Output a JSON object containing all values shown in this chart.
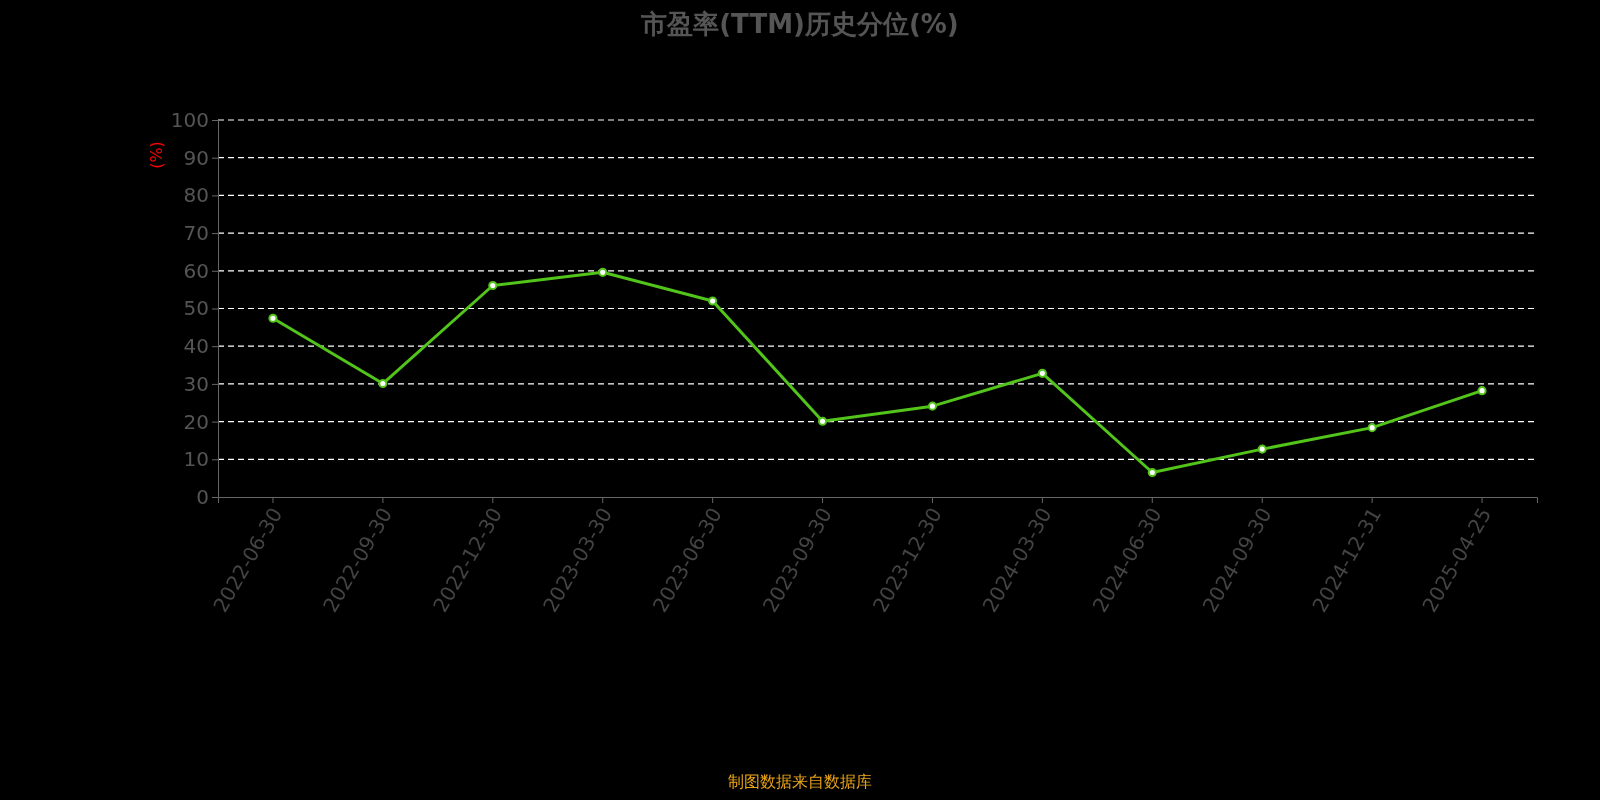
{
  "chart_data": {
    "type": "line",
    "title": "市盈率(TTM)历史分位(%)",
    "ylabel": "(%)",
    "categories": [
      "2022-06-30",
      "2022-09-30",
      "2022-12-30",
      "2023-03-30",
      "2023-06-30",
      "2023-09-30",
      "2023-12-30",
      "2024-03-30",
      "2024-06-30",
      "2024-09-30",
      "2024-12-31",
      "2025-04-25"
    ],
    "series": [
      {
        "color": "#52c41a",
        "values": [
          47.4,
          30.1,
          56.1,
          59.6,
          52.0,
          20.1,
          24.1,
          32.8,
          6.5,
          12.7,
          18.4,
          28.2
        ]
      }
    ],
    "ylim": [
      0,
      100
    ],
    "yticks": [
      0,
      10,
      20,
      30,
      40,
      50,
      60,
      70,
      80,
      90,
      100
    ],
    "grid": "y",
    "marker": "circle",
    "line_style": "solid",
    "annotations": [
      "制图数据来自数据库"
    ]
  }
}
